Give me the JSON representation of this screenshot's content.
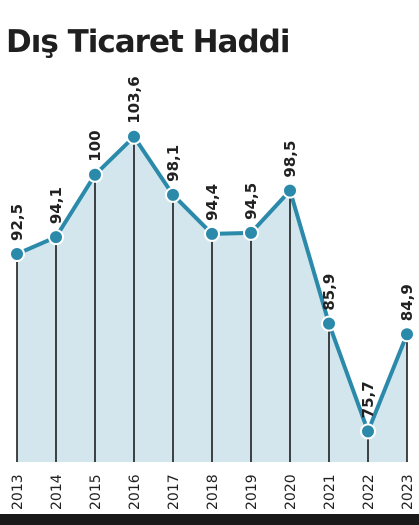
{
  "chart_data": {
    "type": "area",
    "title": "Dış Ticaret Haddi",
    "xlabel": "",
    "ylabel": "",
    "categories": [
      "2013",
      "2014",
      "2015",
      "2016",
      "2017",
      "2018",
      "2019",
      "2020",
      "2021",
      "2022",
      "2023"
    ],
    "value_labels": [
      "92,5",
      "94,1",
      "100",
      "103,6",
      "98,1",
      "94,4",
      "94,5",
      "98,5",
      "85,9",
      "75,7",
      "84,9"
    ],
    "series": [
      {
        "values": [
          92.5,
          94.1,
          100,
          103.6,
          98.1,
          94.4,
          94.5,
          98.5,
          85.9,
          75.7,
          84.9
        ]
      }
    ],
    "ylim": [
      74.5,
      105
    ],
    "grid": false,
    "legend": "none",
    "colors": {
      "line": "#2b8aaa",
      "fill": "#d3e6ee",
      "marker_fill": "#2b8aaa",
      "marker_stroke": "#ffffff",
      "drop_lines": "#1a1a1a",
      "axis": "#1a1a1a",
      "text": "#222222"
    }
  }
}
